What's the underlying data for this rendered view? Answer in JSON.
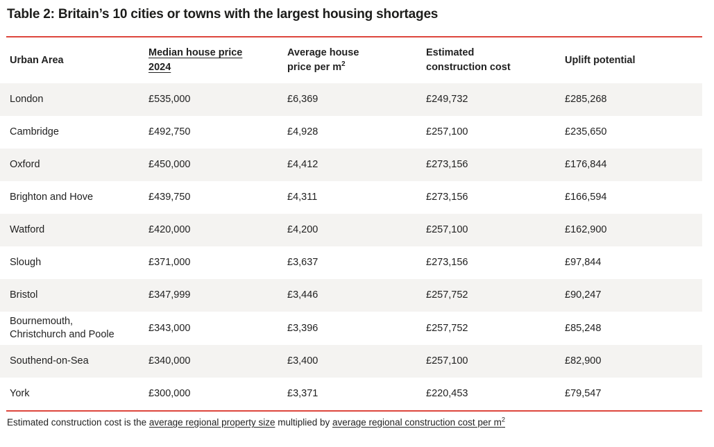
{
  "title": "Table 2: Britain’s 10 cities or towns with the largest housing shortages",
  "colors": {
    "accent_red": "#dd463c",
    "stripe_row": "#f4f3f1",
    "text": "#222222"
  },
  "chart_data": {
    "type": "table",
    "title": "Table 2: Britain’s 10 cities or towns with the largest housing shortages",
    "columns": [
      "Urban Area",
      "Median house price 2024",
      "Average house price per m²",
      "Estimated construction cost",
      "Uplift potential"
    ],
    "rows": [
      [
        "London",
        "£535,000",
        "£6,369",
        "£249,732",
        "£285,268"
      ],
      [
        "Cambridge",
        "£492,750",
        "£4,928",
        "£257,100",
        "£235,650"
      ],
      [
        "Oxford",
        "£450,000",
        "£4,412",
        "£273,156",
        "£176,844"
      ],
      [
        "Brighton and Hove",
        "£439,750",
        "£4,311",
        "£273,156",
        "£166,594"
      ],
      [
        "Watford",
        "£420,000",
        "£4,200",
        "£257,100",
        "£162,900"
      ],
      [
        "Slough",
        "£371,000",
        "£3,637",
        "£273,156",
        "£97,844"
      ],
      [
        "Bristol",
        "£347,999",
        "£3,446",
        "£257,752",
        "£90,247"
      ],
      [
        "Bournemouth, Christchurch and Poole",
        "£343,000",
        "£3,396",
        "£257,752",
        "£85,248"
      ],
      [
        "Southend-on-Sea",
        "£340,000",
        "£3,400",
        "£257,100",
        "£82,900"
      ],
      [
        "York",
        "£300,000",
        "£3,371",
        "£220,453",
        "£79,547"
      ]
    ]
  },
  "header_display": [
    {
      "text": "Urban Area",
      "link": false,
      "sup": ""
    },
    {
      "text": "Median house price\n2024",
      "link": true,
      "sup": ""
    },
    {
      "text": "Average house\nprice per m",
      "link": false,
      "sup": "2"
    },
    {
      "text": "Estimated\nconstruction cost",
      "link": false,
      "sup": ""
    },
    {
      "text": "Uplift potential",
      "link": false,
      "sup": ""
    }
  ],
  "footnote": {
    "part1": "Estimated construction cost is the ",
    "link1": "average regional property size",
    "part2": " multiplied by ",
    "link2": "average regional construction cost per m",
    "link2_sup": "2"
  }
}
